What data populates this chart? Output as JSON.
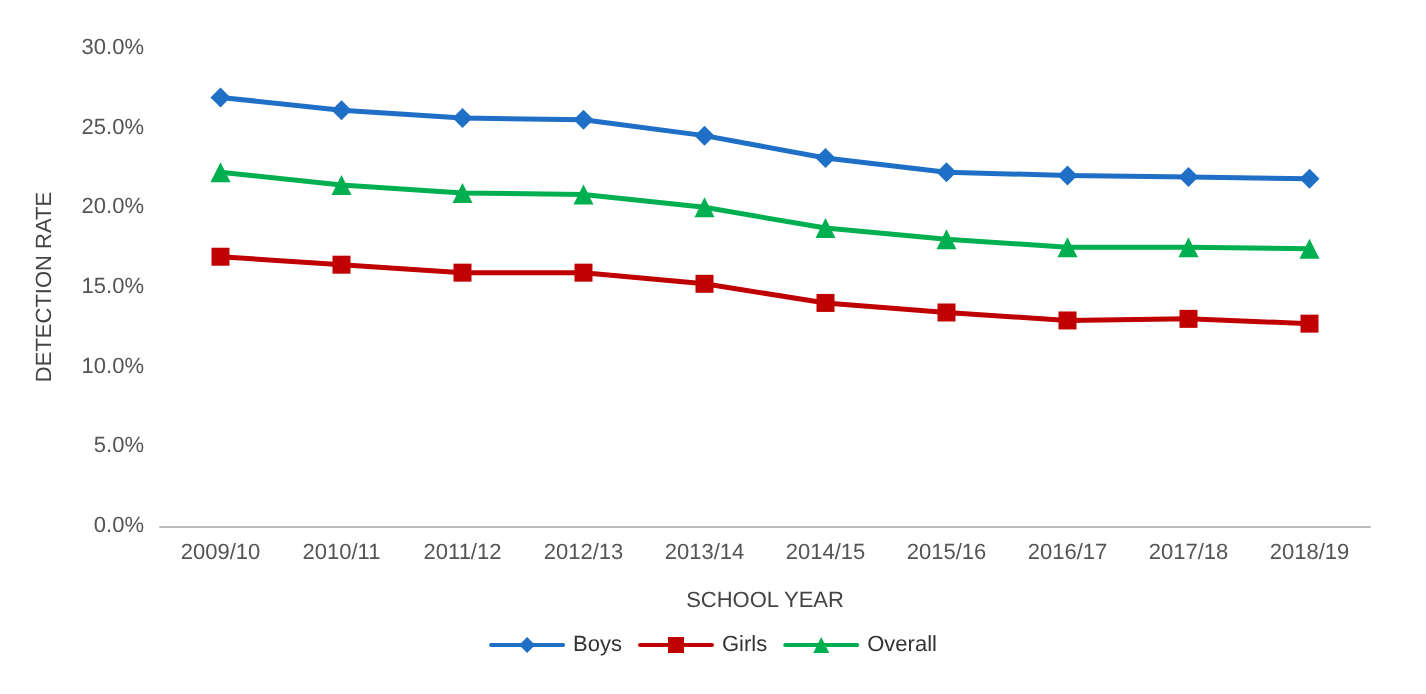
{
  "chart_data": {
    "type": "line",
    "xlabel": "SCHOOL YEAR",
    "ylabel": "DETECTION RATE",
    "categories": [
      "2009/10",
      "2010/11",
      "2011/12",
      "2012/13",
      "2013/14",
      "2014/15",
      "2015/16",
      "2016/17",
      "2017/18",
      "2018/19"
    ],
    "series": [
      {
        "name": "Boys",
        "color": "#1f6fc6",
        "marker": "diamond",
        "values": [
          26.9,
          26.1,
          25.6,
          25.5,
          24.5,
          23.1,
          22.2,
          22.0,
          21.9,
          21.8
        ]
      },
      {
        "name": "Girls",
        "color": "#c00000",
        "marker": "square",
        "values": [
          16.9,
          16.4,
          15.9,
          15.9,
          15.2,
          14.0,
          13.4,
          12.9,
          13.0,
          12.7
        ]
      },
      {
        "name": "Overall",
        "color": "#00b050",
        "marker": "triangle",
        "values": [
          22.2,
          21.4,
          20.9,
          20.8,
          20.0,
          18.7,
          18.0,
          17.5,
          17.5,
          17.4
        ]
      }
    ],
    "ylim": [
      0,
      30
    ],
    "yticks": [
      {
        "value": 0,
        "label": "0.0%"
      },
      {
        "value": 5,
        "label": "5.0%"
      },
      {
        "value": 10,
        "label": "10.0%"
      },
      {
        "value": 15,
        "label": "15.0%"
      },
      {
        "value": 20,
        "label": "20.0%"
      },
      {
        "value": 25,
        "label": "25.0%"
      },
      {
        "value": 30,
        "label": "30.0%"
      }
    ],
    "grid": false,
    "legend": "bottom",
    "line_style": "solid"
  }
}
